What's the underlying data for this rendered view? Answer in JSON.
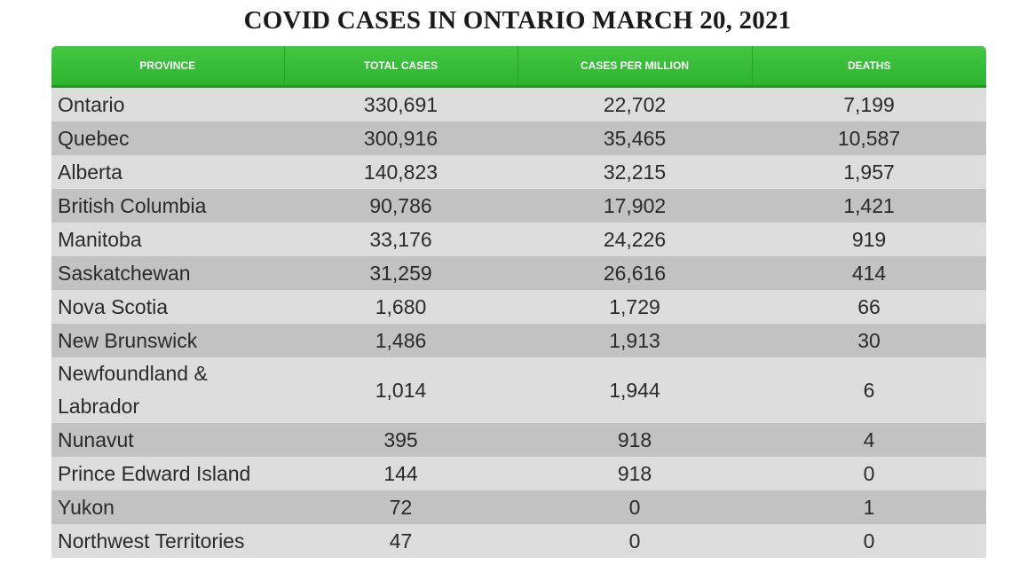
{
  "title": "COVID CASES IN ONTARIO MARCH 20, 2021",
  "table": {
    "headers": [
      "PROVINCE",
      "TOTAL CASES",
      "CASES PER MILLION",
      "DEATHS"
    ],
    "rows": [
      [
        "Ontario",
        "330,691",
        "22,702",
        "7,199"
      ],
      [
        "Quebec",
        "300,916",
        "35,465",
        "10,587"
      ],
      [
        "Alberta",
        "140,823",
        "32,215",
        "1,957"
      ],
      [
        "British Columbia",
        "90,786",
        "17,902",
        "1,421"
      ],
      [
        "Manitoba",
        "33,176",
        "24,226",
        "919"
      ],
      [
        "Saskatchewan",
        "31,259",
        "26,616",
        "414"
      ],
      [
        "Nova Scotia",
        "1,680",
        "1,729",
        "66"
      ],
      [
        "New Brunswick",
        "1,486",
        "1,913",
        "30"
      ],
      [
        "Newfoundland & Labrador",
        "1,014",
        "1,944",
        "6"
      ],
      [
        "Nunavut",
        "395",
        "918",
        "4"
      ],
      [
        "Prince Edward Island",
        "144",
        "918",
        "0"
      ],
      [
        "Yukon",
        "72",
        "0",
        "1"
      ],
      [
        "Northwest Territories",
        "47",
        "0",
        "0"
      ]
    ]
  },
  "colors": {
    "header_green": "#3cbe3c",
    "row_light": "#dcdcdc",
    "row_dark": "#c2c2c2"
  }
}
